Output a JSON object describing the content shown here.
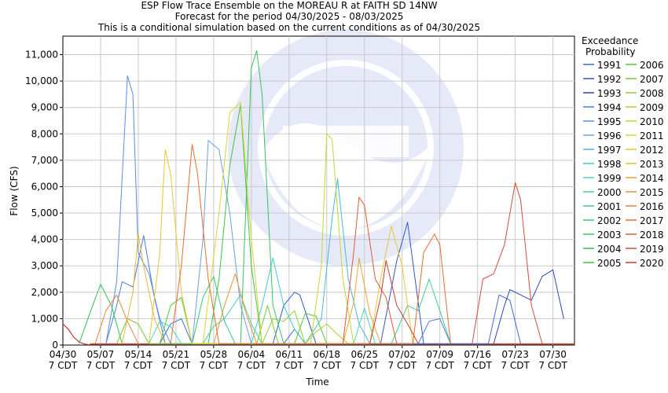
{
  "chart_data": {
    "type": "line",
    "title": "ESP Flow Trace Ensemble on the MOREAU R at FAITH SD 14NW",
    "subtitle": [
      "Forecast for the period 04/30/2025 - 08/03/2025",
      "This is a conditional simulation based on the current conditions as of 04/30/2025"
    ],
    "xlabel": "Time",
    "ylabel": "Flow (CFS)",
    "xlim": [
      "2025-04-30",
      "2025-08-03"
    ],
    "ylim": [
      0,
      11700
    ],
    "grid": true,
    "y_ticks": [
      0,
      1000,
      2000,
      3000,
      4000,
      5000,
      6000,
      7000,
      8000,
      9000,
      10000,
      11000
    ],
    "y_tick_labels": [
      "0",
      "1,000",
      "2,000",
      "3,000",
      "4,000",
      "5,000",
      "6,000",
      "7,000",
      "8,000",
      "9,000",
      "10,000",
      "11,000"
    ],
    "x_ticks": [
      "2025-04-30",
      "2025-05-07",
      "2025-05-14",
      "2025-05-21",
      "2025-05-28",
      "2025-06-04",
      "2025-06-11",
      "2025-06-18",
      "2025-06-25",
      "2025-07-02",
      "2025-07-09",
      "2025-07-16",
      "2025-07-23",
      "2025-07-30"
    ],
    "x_tick_labels": [
      [
        "04/30",
        "7 CDT"
      ],
      [
        "05/07",
        "7 CDT"
      ],
      [
        "05/14",
        "7 CDT"
      ],
      [
        "05/21",
        "7 CDT"
      ],
      [
        "05/28",
        "7 CDT"
      ],
      [
        "06/04",
        "7 CDT"
      ],
      [
        "06/11",
        "7 CDT"
      ],
      [
        "06/18",
        "7 CDT"
      ],
      [
        "06/25",
        "7 CDT"
      ],
      [
        "07/02",
        "7 CDT"
      ],
      [
        "07/09",
        "7 CDT"
      ],
      [
        "07/16",
        "7 CDT"
      ],
      [
        "07/23",
        "7 CDT"
      ],
      [
        "07/30",
        "7 CDT"
      ]
    ],
    "legend": {
      "title": [
        "Exceedance",
        "Probability"
      ],
      "placement": "right"
    },
    "base_series": {
      "x": [
        "2025-04-30",
        "2025-05-01",
        "2025-05-02",
        "2025-05-03",
        "2025-05-04",
        "2025-05-05"
      ],
      "y": [
        800,
        600,
        300,
        120,
        40,
        10
      ]
    },
    "series": [
      {
        "name": "1991",
        "color": "#3a6bd4",
        "x": [
          "2025-05-18",
          "2025-05-20",
          "2025-05-22",
          "2025-05-24",
          "2025-06-10",
          "2025-06-12",
          "2025-06-14",
          "2025-07-18",
          "2025-07-20",
          "2025-07-22",
          "2025-07-24"
        ],
        "y": [
          50,
          800,
          1000,
          50,
          50,
          600,
          50,
          50,
          1900,
          1700,
          50
        ]
      },
      {
        "name": "1992",
        "color": "#2e57c8",
        "x": [
          "2025-06-08",
          "2025-06-10",
          "2025-06-12",
          "2025-06-13",
          "2025-06-16",
          "2025-06-28",
          "2025-07-01",
          "2025-07-03",
          "2025-07-06"
        ],
        "y": [
          50,
          1500,
          2000,
          1900,
          50,
          50,
          3200,
          4650,
          50
        ]
      },
      {
        "name": "1993",
        "color": "#2a47b8",
        "x": [
          "2025-07-19",
          "2025-07-21",
          "2025-07-22",
          "2025-07-23",
          "2025-07-26",
          "2025-07-28",
          "2025-07-30",
          "2025-08-01"
        ],
        "y": [
          50,
          1500,
          2100,
          2000,
          1700,
          2600,
          2850,
          1000
        ]
      },
      {
        "name": "1994",
        "color": "#4a7cdc",
        "x": [
          "2025-05-08",
          "2025-05-10",
          "2025-05-11",
          "2025-05-13",
          "2025-05-15",
          "2025-05-17",
          "2025-05-19",
          "2025-07-05",
          "2025-07-07",
          "2025-07-09",
          "2025-07-11"
        ],
        "y": [
          50,
          1500,
          2400,
          2200,
          4150,
          1800,
          50,
          50,
          900,
          1000,
          50
        ]
      },
      {
        "name": "1995",
        "color": "#5a8ee2",
        "x": [
          "2025-05-08",
          "2025-05-10",
          "2025-05-12",
          "2025-05-13",
          "2025-05-14",
          "2025-05-16",
          "2025-05-18",
          "2025-05-20"
        ],
        "y": [
          50,
          2400,
          10200,
          9500,
          3500,
          2700,
          1000,
          50
        ]
      },
      {
        "name": "1996",
        "color": "#6aa0e6",
        "x": [
          "2025-05-24",
          "2025-05-26",
          "2025-05-27",
          "2025-05-29",
          "2025-05-31",
          "2025-06-02",
          "2025-06-04"
        ],
        "y": [
          50,
          4000,
          7750,
          7400,
          5000,
          1500,
          50
        ]
      },
      {
        "name": "1997",
        "color": "#44b8e0",
        "x": [
          "2025-06-14",
          "2025-06-17",
          "2025-06-19",
          "2025-06-20",
          "2025-06-22",
          "2025-06-24",
          "2025-06-26"
        ],
        "y": [
          50,
          1000,
          4800,
          6300,
          2500,
          800,
          50
        ]
      },
      {
        "name": "1998",
        "color": "#3ec8d8",
        "x": [
          "2025-06-04",
          "2025-06-06",
          "2025-06-08",
          "2025-06-10",
          "2025-06-12",
          "2025-06-14"
        ],
        "y": [
          50,
          1500,
          3300,
          1500,
          600,
          50
        ]
      },
      {
        "name": "1999",
        "color": "#48d4c0",
        "x": [
          "2025-05-16",
          "2025-05-18",
          "2025-05-20",
          "2025-05-22",
          "2025-06-23",
          "2025-06-25",
          "2025-06-27"
        ],
        "y": [
          50,
          900,
          700,
          50,
          50,
          1400,
          50
        ]
      },
      {
        "name": "2000",
        "color": "#40d0a8",
        "x": [
          "2025-05-26",
          "2025-05-28",
          "2025-05-30",
          "2025-06-02",
          "2025-06-04",
          "2025-06-06"
        ],
        "y": [
          50,
          700,
          1000,
          1900,
          800,
          50
        ]
      },
      {
        "name": "2001",
        "color": "#3ccc8c",
        "x": [
          "2025-06-30",
          "2025-07-03",
          "2025-07-05",
          "2025-07-07",
          "2025-07-09",
          "2025-07-11"
        ],
        "y": [
          50,
          1500,
          1300,
          2500,
          1300,
          50
        ]
      },
      {
        "name": "2002",
        "color": "#38c878",
        "x": [
          "2025-05-24",
          "2025-05-26",
          "2025-05-28",
          "2025-05-30",
          "2025-06-01"
        ],
        "y": [
          50,
          1800,
          2600,
          900,
          50
        ]
      },
      {
        "name": "2003",
        "color": "#34c464",
        "x": [
          "2025-06-02",
          "2025-06-04",
          "2025-06-05",
          "2025-06-06",
          "2025-06-08",
          "2025-06-10"
        ],
        "y": [
          50,
          10500,
          11150,
          9500,
          1500,
          50
        ]
      },
      {
        "name": "2004",
        "color": "#30c050",
        "x": [
          "2025-05-03",
          "2025-05-05",
          "2025-05-07",
          "2025-05-09",
          "2025-05-11"
        ],
        "y": [
          50,
          1200,
          2300,
          1500,
          50
        ]
      },
      {
        "name": "2005",
        "color": "#3cc440",
        "x": [
          "2025-05-27",
          "2025-05-29",
          "2025-05-31",
          "2025-06-02",
          "2025-06-04",
          "2025-06-06"
        ],
        "y": [
          50,
          2500,
          6800,
          9100,
          3000,
          50
        ]
      },
      {
        "name": "2006",
        "color": "#54c830",
        "x": [
          "2025-05-18",
          "2025-05-20",
          "2025-05-22",
          "2025-05-24",
          "2025-06-12",
          "2025-06-14",
          "2025-06-16",
          "2025-06-18"
        ],
        "y": [
          50,
          1500,
          1800,
          50,
          50,
          1200,
          1100,
          50
        ]
      },
      {
        "name": "2007",
        "color": "#6ecc30",
        "x": [
          "2025-05-10",
          "2025-05-12",
          "2025-05-14",
          "2025-05-16",
          "2025-06-05",
          "2025-06-07",
          "2025-06-09"
        ],
        "y": [
          50,
          1000,
          800,
          50,
          50,
          1500,
          50
        ]
      },
      {
        "name": "2008",
        "color": "#8ad030",
        "x": [
          "2025-06-06",
          "2025-06-08",
          "2025-06-10",
          "2025-06-12",
          "2025-06-14"
        ],
        "y": [
          50,
          1000,
          900,
          1300,
          50
        ]
      },
      {
        "name": "2009",
        "color": "#a6d430",
        "x": [
          "2025-06-14",
          "2025-06-16",
          "2025-06-18",
          "2025-06-20",
          "2025-06-22"
        ],
        "y": [
          50,
          500,
          800,
          400,
          50
        ]
      },
      {
        "name": "2010",
        "color": "#c4d830",
        "x": [
          "2025-06-15",
          "2025-06-17",
          "2025-06-18",
          "2025-06-19",
          "2025-06-21",
          "2025-06-23"
        ],
        "y": [
          50,
          3000,
          8000,
          7800,
          2500,
          50
        ]
      },
      {
        "name": "2011",
        "color": "#dcd430",
        "x": [
          "2025-05-26",
          "2025-05-29",
          "2025-05-31",
          "2025-06-02",
          "2025-06-04",
          "2025-06-06"
        ],
        "y": [
          50,
          5000,
          8800,
          9200,
          4000,
          50
        ]
      },
      {
        "name": "2012",
        "color": "#e6c830",
        "x": [
          "2025-05-16",
          "2025-05-18",
          "2025-05-19",
          "2025-05-20",
          "2025-05-22",
          "2025-05-24",
          "2025-06-26",
          "2025-06-28",
          "2025-06-30",
          "2025-07-02",
          "2025-07-04"
        ],
        "y": [
          50,
          3500,
          7400,
          6500,
          2000,
          50,
          50,
          2500,
          4500,
          3000,
          50
        ]
      },
      {
        "name": "2013",
        "color": "#eab830",
        "x": [
          "2025-05-11",
          "2025-05-13",
          "2025-05-14",
          "2025-05-15",
          "2025-05-17",
          "2025-05-19"
        ],
        "y": [
          50,
          2000,
          4200,
          3000,
          1000,
          50
        ]
      },
      {
        "name": "2014",
        "color": "#eca430",
        "x": [
          "2025-06-21",
          "2025-06-23",
          "2025-06-24",
          "2025-06-26",
          "2025-06-28"
        ],
        "y": [
          50,
          1600,
          3300,
          1200,
          50
        ]
      },
      {
        "name": "2015",
        "color": "#ee9230",
        "x": [
          "2025-05-28",
          "2025-05-30",
          "2025-06-01",
          "2025-06-03",
          "2025-06-05"
        ],
        "y": [
          50,
          1500,
          2700,
          1200,
          50
        ]
      },
      {
        "name": "2016",
        "color": "#f08030",
        "x": [
          "2025-05-06",
          "2025-05-08",
          "2025-05-10",
          "2025-05-12",
          "2025-05-14"
        ],
        "y": [
          50,
          1300,
          1900,
          900,
          50
        ]
      },
      {
        "name": "2017",
        "color": "#e66a30",
        "x": [
          "2025-05-20",
          "2025-05-22",
          "2025-05-24",
          "2025-05-25",
          "2025-05-27",
          "2025-05-29",
          "2025-07-04",
          "2025-07-06",
          "2025-07-08",
          "2025-07-09",
          "2025-07-11"
        ],
        "y": [
          50,
          3000,
          7600,
          6500,
          2500,
          50,
          50,
          3500,
          4200,
          3800,
          50
        ]
      },
      {
        "name": "2018",
        "color": "#e05a34",
        "x": [
          "2025-06-21",
          "2025-06-23",
          "2025-06-24",
          "2025-06-25",
          "2025-06-27",
          "2025-06-29",
          "2025-07-01"
        ],
        "y": [
          50,
          3500,
          5600,
          5300,
          2500,
          1800,
          50
        ]
      },
      {
        "name": "2019",
        "color": "#d84a34",
        "x": [
          "2025-07-15",
          "2025-07-17",
          "2025-07-19",
          "2025-07-21",
          "2025-07-23",
          "2025-07-24",
          "2025-07-26",
          "2025-07-28"
        ],
        "y": [
          50,
          2500,
          2700,
          3800,
          6150,
          5500,
          1500,
          50
        ]
      },
      {
        "name": "2020",
        "color": "#cc3a30",
        "x": [
          "2025-06-26",
          "2025-06-28",
          "2025-06-29",
          "2025-07-01",
          "2025-07-03",
          "2025-07-05"
        ],
        "y": [
          50,
          1800,
          3200,
          1500,
          800,
          50
        ]
      }
    ]
  }
}
